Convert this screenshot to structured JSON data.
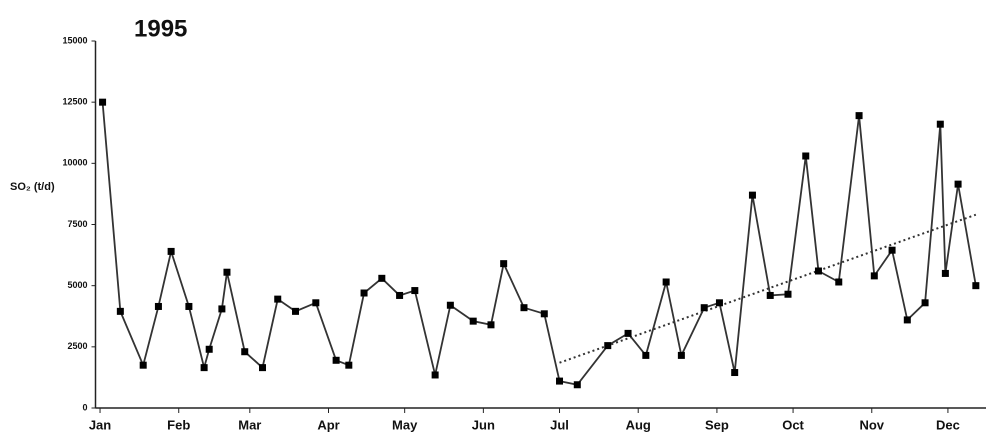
{
  "chart_data": {
    "type": "line",
    "title": "1995",
    "y_label": "SO₂ (t/d)",
    "x": [
      2,
      9,
      18,
      24,
      29,
      36,
      42,
      44,
      49,
      51,
      58,
      65,
      71,
      78,
      86,
      94,
      99,
      105,
      112,
      119,
      125,
      133,
      139,
      148,
      155,
      160,
      168,
      176,
      182,
      189,
      201,
      209,
      216,
      224,
      230,
      239,
      245,
      251,
      258,
      265,
      272,
      279,
      284,
      292,
      300,
      306,
      313,
      319,
      326,
      332,
      334,
      339,
      346
    ],
    "series": [
      {
        "color": "#333333",
        "values": [
          12500,
          3950,
          1750,
          4150,
          6400,
          4150,
          1650,
          2400,
          4050,
          5550,
          2300,
          1650,
          4450,
          3950,
          4300,
          1950,
          1750,
          4700,
          5300,
          4600,
          4800,
          1350,
          4200,
          3550,
          3400,
          5900,
          4100,
          3850,
          1100,
          950,
          2550,
          3050,
          2150,
          5150,
          2150,
          4100,
          4300,
          1450,
          8700,
          4600,
          4650,
          10300,
          5600,
          5150,
          11950,
          5400,
          6450,
          3600,
          4300,
          11600,
          5500,
          9150,
          5000
        ]
      }
    ],
    "trend": {
      "x": [
        182,
        346
      ],
      "values": [
        1850,
        7900
      ],
      "color": "#333333"
    },
    "xlim": [
      0,
      350
    ],
    "xticks": [
      {
        "value": 1,
        "label": "Jan"
      },
      {
        "value": 32,
        "label": "Feb"
      },
      {
        "value": 60,
        "label": "Mar"
      },
      {
        "value": 91,
        "label": "Apr"
      },
      {
        "value": 121,
        "label": "May"
      },
      {
        "value": 152,
        "label": "Jun"
      },
      {
        "value": 182,
        "label": "Jul"
      },
      {
        "value": 213,
        "label": "Aug"
      },
      {
        "value": 244,
        "label": "Sep"
      },
      {
        "value": 274,
        "label": "Oct"
      },
      {
        "value": 305,
        "label": "Nov"
      },
      {
        "value": 335,
        "label": "Dec"
      }
    ],
    "ylim": [
      0,
      15000
    ],
    "yticks": [
      0,
      2500,
      5000,
      7500,
      10000,
      12500,
      15000
    ],
    "grid": false
  }
}
